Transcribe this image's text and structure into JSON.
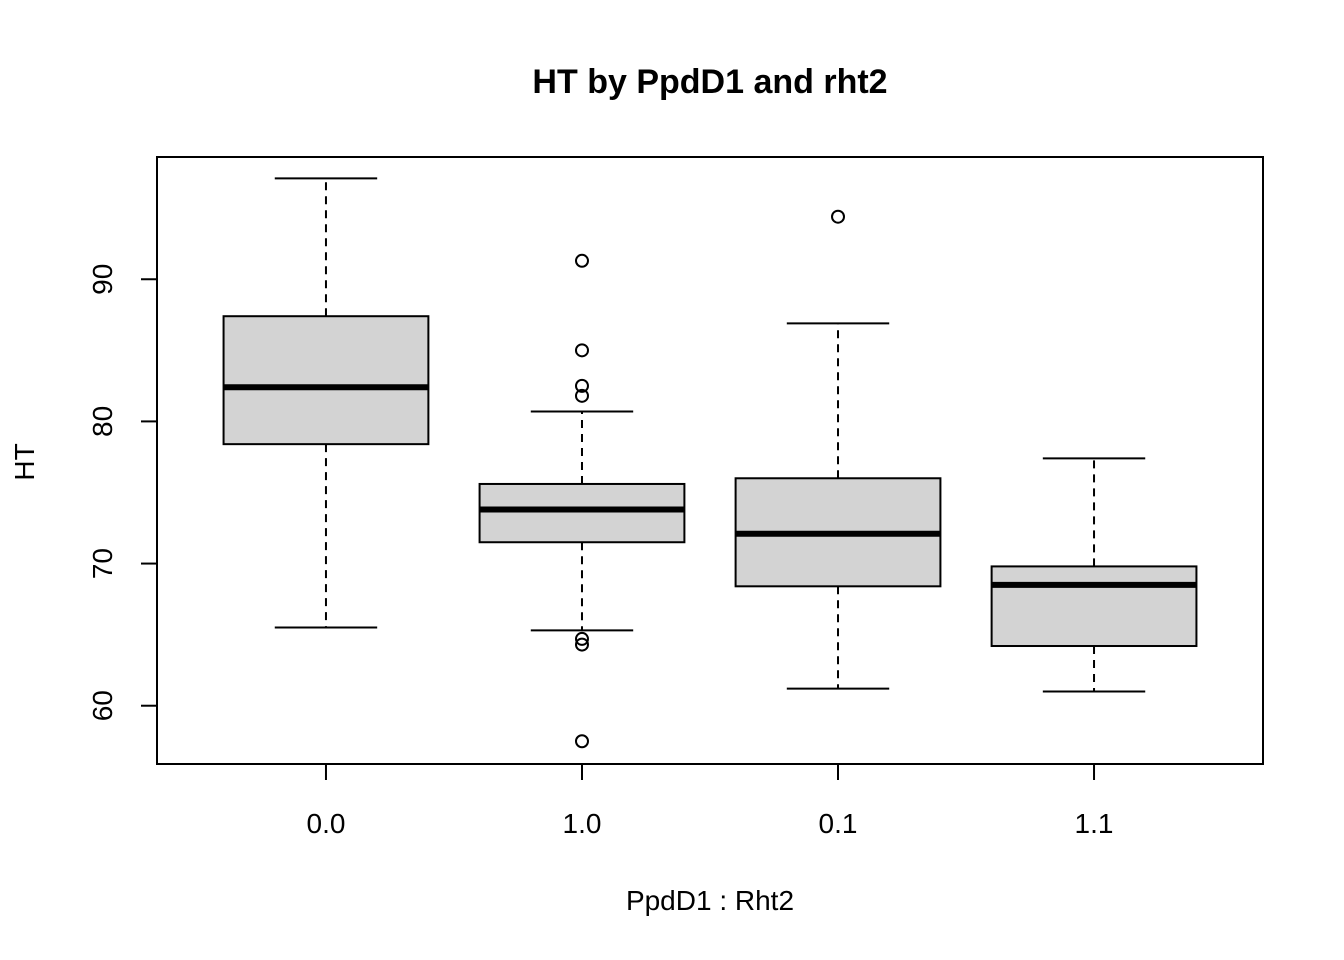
{
  "chart_data": {
    "type": "boxplot",
    "title": "HT by PpdD1 and rht2",
    "xlabel": "PpdD1 : Rht2",
    "ylabel": "HT",
    "categories": [
      "0.0",
      "1.0",
      "0.1",
      "1.1"
    ],
    "ylim": [
      55.9,
      98.6
    ],
    "yticks": [
      60,
      70,
      80,
      90
    ],
    "box_fill": "#d3d3d3",
    "grid": false,
    "boxes": [
      {
        "category": "0.0",
        "whisker_low": 65.5,
        "q1": 78.4,
        "median": 82.4,
        "q3": 87.4,
        "whisker_high": 97.1,
        "outliers": []
      },
      {
        "category": "1.0",
        "whisker_low": 65.3,
        "q1": 71.5,
        "median": 73.8,
        "q3": 75.6,
        "whisker_high": 80.7,
        "outliers": [
          91.3,
          85.0,
          82.5,
          81.8,
          64.7,
          64.3,
          57.5
        ]
      },
      {
        "category": "0.1",
        "whisker_low": 61.2,
        "q1": 68.4,
        "median": 72.1,
        "q3": 76.0,
        "whisker_high": 86.9,
        "outliers": [
          94.4
        ]
      },
      {
        "category": "1.1",
        "whisker_low": 61.0,
        "q1": 64.2,
        "median": 68.5,
        "q3": 69.8,
        "whisker_high": 77.4,
        "outliers": []
      }
    ]
  }
}
